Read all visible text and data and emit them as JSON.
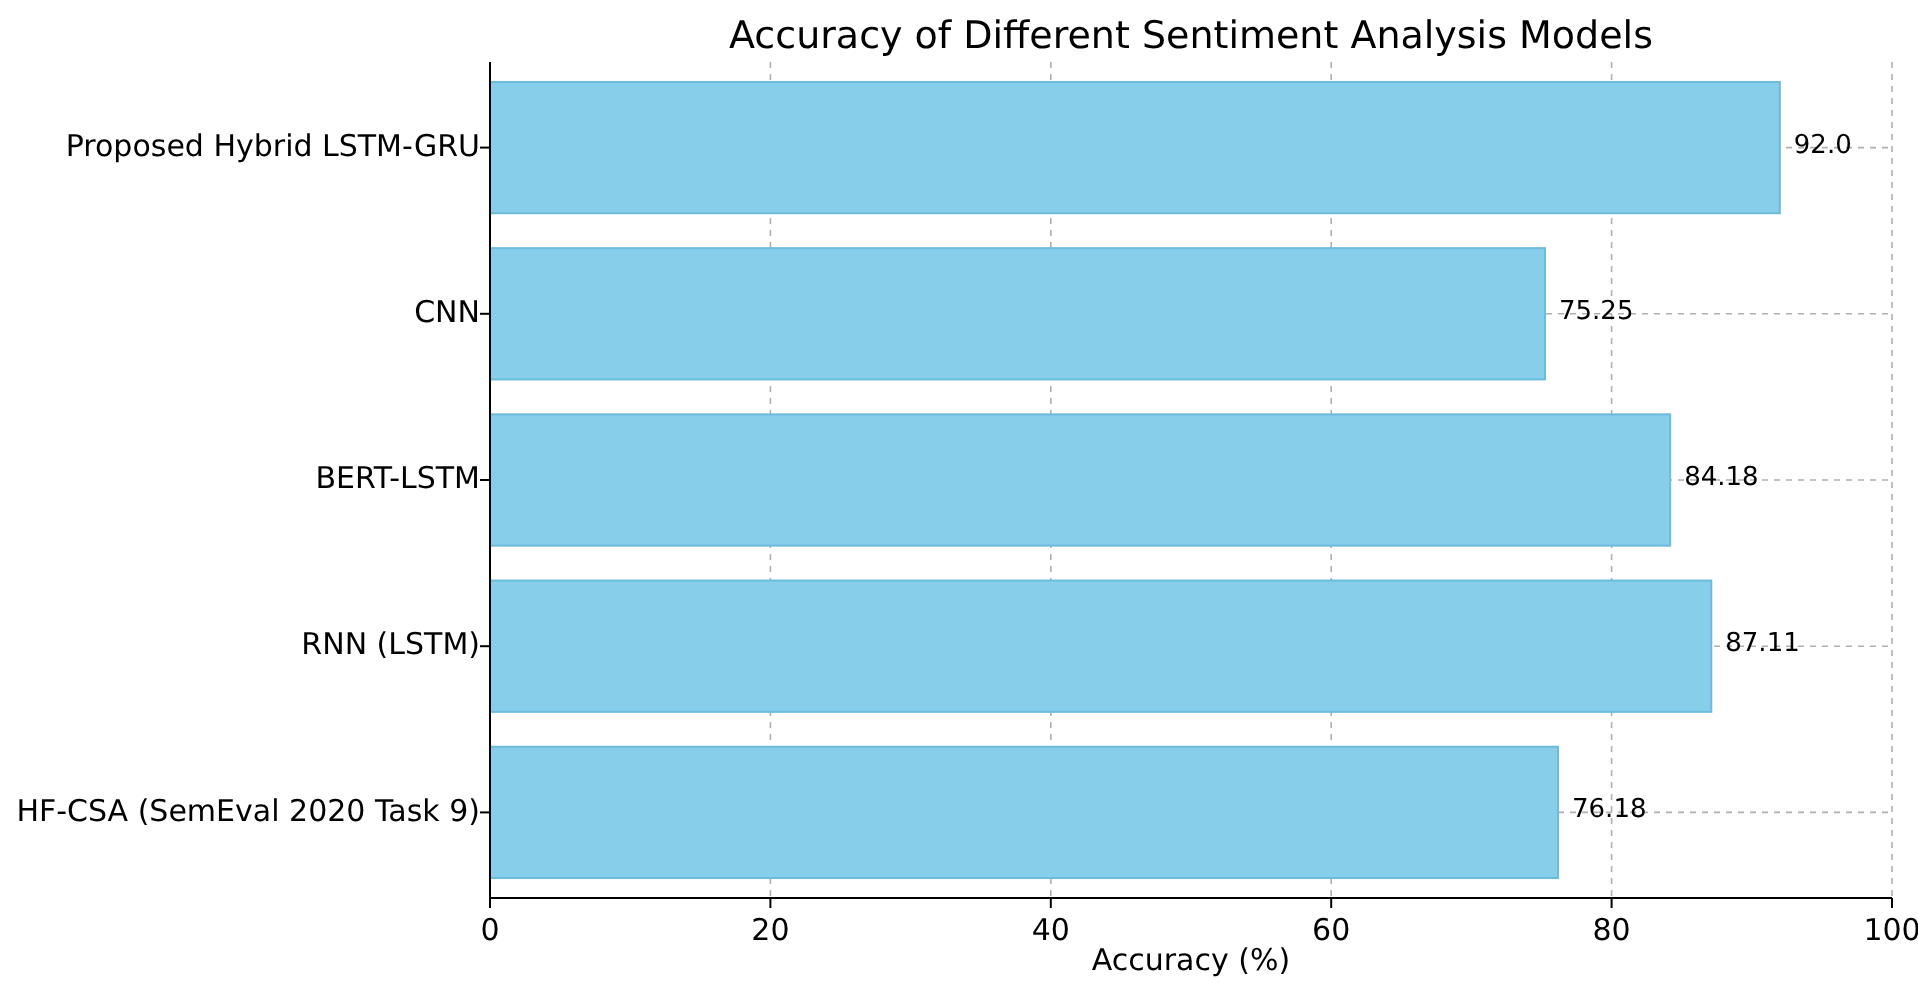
{
  "chart_data": {
    "type": "bar",
    "orientation": "horizontal",
    "title": "Accuracy of Different Sentiment Analysis Models",
    "xlabel": "Accuracy (%)",
    "categories": [
      "Proposed Hybrid LSTM-GRU",
      "CNN",
      "BERT-LSTM",
      "RNN (LSTM)",
      "HF-CSA (SemEval 2020 Task 9)"
    ],
    "values": [
      92.0,
      75.25,
      84.18,
      87.11,
      76.18
    ],
    "value_labels": [
      "92.0",
      "75.25",
      "84.18",
      "87.11",
      "76.18"
    ],
    "color": "#87ceeb",
    "xlim": [
      0,
      100
    ],
    "xticks": [
      0,
      20,
      40,
      60,
      80,
      100
    ],
    "grid": true
  }
}
